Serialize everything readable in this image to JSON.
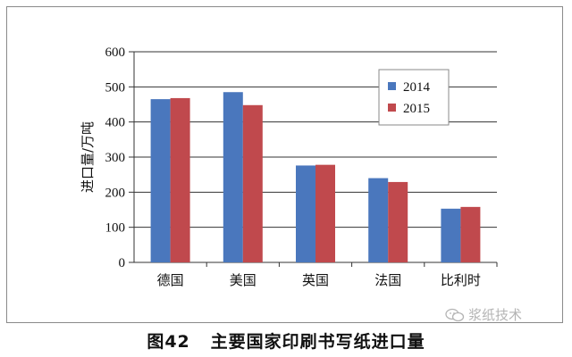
{
  "chart_data": {
    "type": "bar",
    "title": "图42 主要国家印刷书写纸进口量",
    "ylabel": "进口量/万吨",
    "xlabel": "",
    "categories": [
      "德国",
      "美国",
      "英国",
      "法国",
      "比利时"
    ],
    "series": [
      {
        "name": "2014",
        "color": "#4a77bd",
        "values": [
          465,
          485,
          276,
          240,
          153
        ]
      },
      {
        "name": "2015",
        "color": "#c0494d",
        "values": [
          468,
          448,
          278,
          229,
          158
        ]
      }
    ],
    "ylim": [
      0,
      600
    ],
    "yticks": [
      0,
      100,
      200,
      300,
      400,
      500,
      600
    ],
    "grid": true,
    "legend_position": "top-right"
  },
  "caption": {
    "label": "图42",
    "text": "主要国家印刷书写纸进口量"
  },
  "watermark": {
    "text": "浆纸技术",
    "icon": "wechat-icon"
  }
}
